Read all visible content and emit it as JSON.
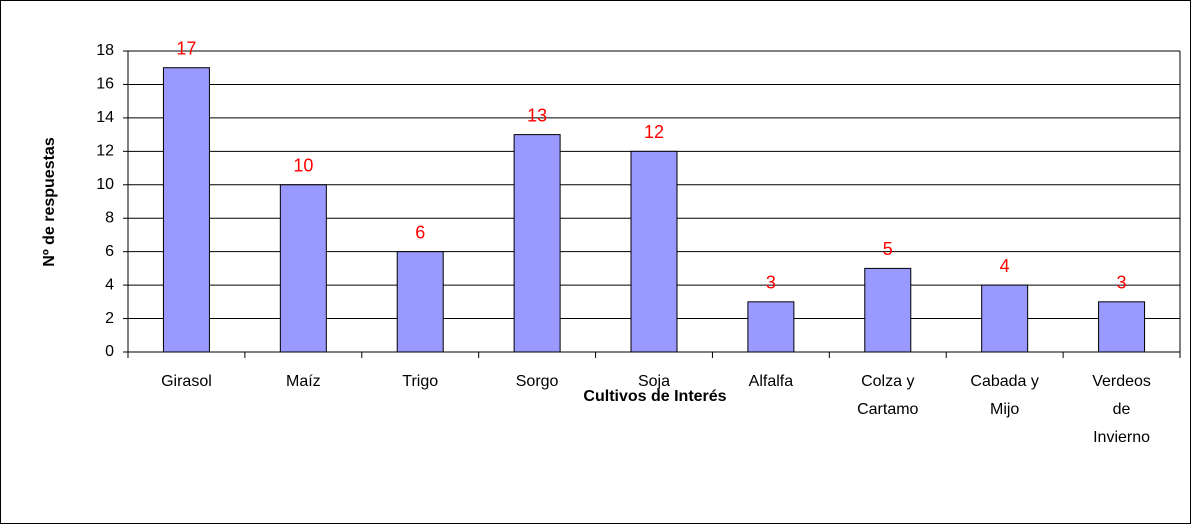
{
  "chart_data": {
    "type": "bar",
    "categories": [
      "Girasol",
      "Maíz",
      "Trigo",
      "Sorgo",
      "Soja",
      "Alfalfa",
      "Colza y\nCartamo",
      "Cabada y\nMijo",
      "Verdeos\nde\nInvierno"
    ],
    "values": [
      17,
      10,
      6,
      13,
      12,
      3,
      5,
      4,
      3
    ],
    "color": "#9999ff",
    "value_label_color": "#ff0000",
    "ylim": [
      0,
      18
    ],
    "yticks": [
      0,
      2,
      4,
      6,
      8,
      10,
      12,
      14,
      16,
      18
    ],
    "grid": true,
    "ylabel": "Nº de respuestas",
    "xlabel": "Cultivos de Interés"
  }
}
